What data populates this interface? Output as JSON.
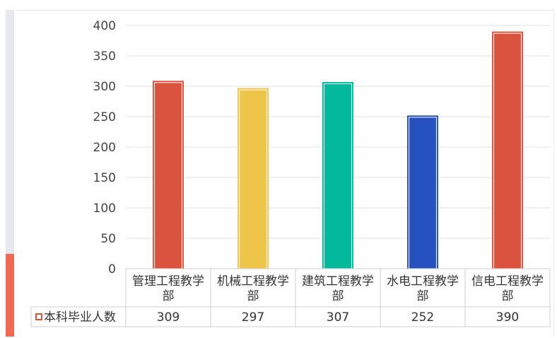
{
  "chart_data": {
    "type": "bar",
    "categories": [
      "管理工程教学部",
      "机械工程教学部",
      "建筑工程教学部",
      "水电工程教学部",
      "信电工程教学部"
    ],
    "series": [
      {
        "name": "本科毕业人数",
        "values": [
          309,
          297,
          307,
          252,
          390
        ]
      }
    ],
    "bar_colors": [
      "#d9533f",
      "#f0c64a",
      "#00b89a",
      "#2750c0",
      "#d9533f"
    ],
    "legend_marker_color": "#d9533f",
    "title": "",
    "xlabel": "",
    "ylabel": "",
    "ylim": [
      0,
      400
    ],
    "yticks": [
      0,
      50,
      100,
      150,
      200,
      250,
      300,
      350,
      400
    ],
    "grid": true,
    "data_table": true
  }
}
